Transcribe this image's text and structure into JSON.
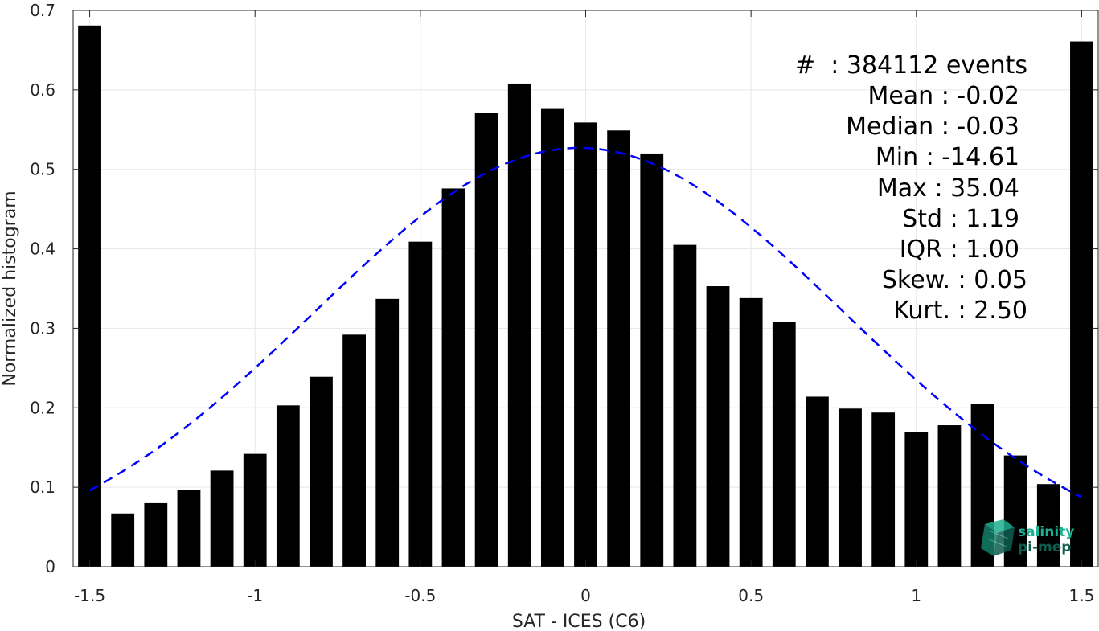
{
  "chart_data": {
    "type": "bar",
    "xlabel": "SAT - ICES (C6)",
    "ylabel": "Normalized histogram",
    "xlim": [
      -1.55,
      1.55
    ],
    "ylim": [
      0,
      0.7
    ],
    "grid": true,
    "x_ticks": [
      -1.5,
      -1,
      -0.5,
      0,
      0.5,
      1,
      1.5
    ],
    "x_tick_labels": [
      "-1.5",
      "-1",
      "-0.5",
      "0",
      "0.5",
      "1",
      "1.5"
    ],
    "y_ticks": [
      0,
      0.1,
      0.2,
      0.3,
      0.4,
      0.5,
      0.6,
      0.7
    ],
    "y_tick_labels": [
      "0",
      "0.1",
      "0.2",
      "0.3",
      "0.4",
      "0.5",
      "0.6",
      "0.7"
    ],
    "bar_width": 0.07,
    "x": [
      -1.5,
      -1.4,
      -1.3,
      -1.2,
      -1.1,
      -1.0,
      -0.9,
      -0.8,
      -0.7,
      -0.6,
      -0.5,
      -0.4,
      -0.3,
      -0.2,
      -0.1,
      0.0,
      0.1,
      0.2,
      0.3,
      0.4,
      0.5,
      0.6,
      0.7,
      0.8,
      0.9,
      1.0,
      1.1,
      1.2,
      1.3,
      1.4,
      1.5
    ],
    "values": [
      0.681,
      0.067,
      0.08,
      0.097,
      0.121,
      0.142,
      0.203,
      0.239,
      0.292,
      0.337,
      0.409,
      0.476,
      0.571,
      0.608,
      0.577,
      0.559,
      0.549,
      0.52,
      0.405,
      0.353,
      0.338,
      0.308,
      0.214,
      0.199,
      0.194,
      0.169,
      0.178,
      0.205,
      0.14,
      0.104,
      0.661
    ],
    "fit_curve": {
      "type": "gaussian",
      "mean": -0.02,
      "std": 1.19,
      "peak": 0.527,
      "x_range": [
        -1.5,
        1.5
      ],
      "color": "#0000ff",
      "style": "dashed"
    },
    "bar_color": "#000000"
  },
  "stats": {
    "events": "#  : 384112 events",
    "mean": "Mean : -0.02",
    "median": "Median : -0.03",
    "min": "Min : -14.61",
    "max": "Max : 35.04",
    "std": "Std : 1.19",
    "iqr": "IQR : 1.00",
    "skew": "Skew. : 0.05",
    "kurt": "Kurt. : 2.50"
  },
  "logo": {
    "line1": "salinity",
    "line2": "pi-mep",
    "color": "#19b394"
  }
}
